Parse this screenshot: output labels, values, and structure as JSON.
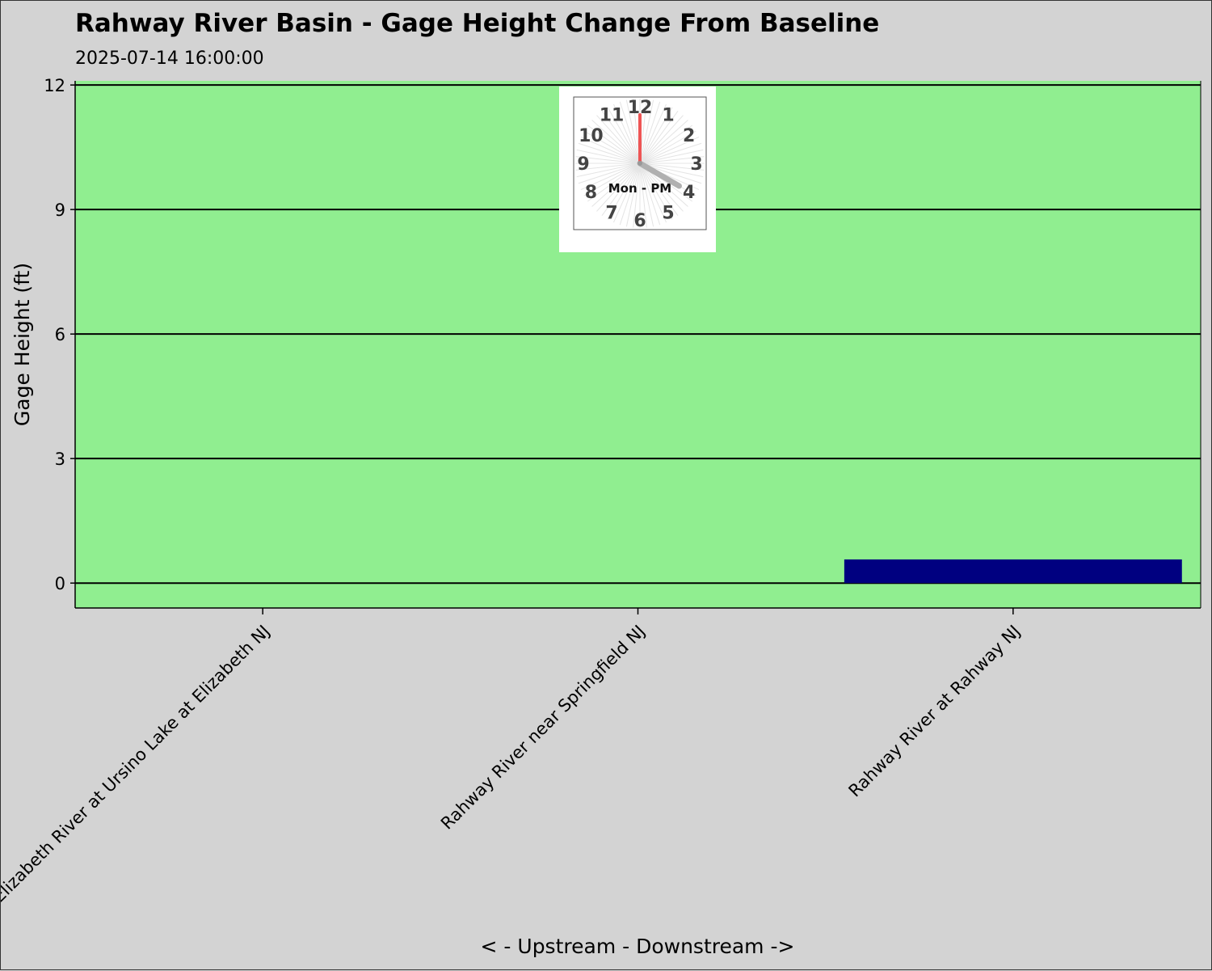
{
  "colors": {
    "background": "#d3d3d3",
    "plot_background": "#90ee90",
    "bar": "#000080",
    "gridline": "#000000",
    "clock_minute_hand": "#ee5555",
    "clock_hour_hand": "#b0b0b0"
  },
  "clock": {
    "numbers": [
      "12",
      "1",
      "2",
      "3",
      "4",
      "5",
      "6",
      "7",
      "8",
      "9",
      "10",
      "11"
    ],
    "label": "Mon - PM",
    "hour": 4,
    "minute": 0
  },
  "chart_data": {
    "type": "bar",
    "title": "Rahway River Basin - Gage Height Change From Baseline",
    "subtitle": "2025-07-14 16:00:00",
    "xlabel": "< - Upstream - Downstream ->",
    "ylabel": "Gage Height (ft)",
    "categories": [
      "Elizabeth River at Ursino Lake at Elizabeth NJ",
      "Rahway River near Springfield NJ",
      "Rahway River at Rahway NJ"
    ],
    "values": [
      null,
      null,
      0.57
    ],
    "ylim": [
      -0.6,
      12.1
    ],
    "yticks": [
      0,
      3,
      6,
      9,
      12
    ],
    "grid": "horizontal",
    "legend": "none"
  }
}
